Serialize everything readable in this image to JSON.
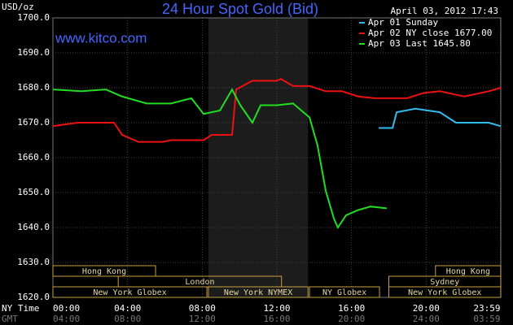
{
  "chart_data": {
    "type": "line",
    "title": "24 Hour Spot Gold (Bid)",
    "timestamp": "April 03, 2012 17:43",
    "y_label": "USD/oz",
    "watermark": "www.kitco.com",
    "x_row_label": "NY Time",
    "x2_row_label": "GMT",
    "ylim": [
      1620,
      1700
    ],
    "yticks": [
      {
        "value": 1620,
        "label": "1620.0"
      },
      {
        "value": 1630,
        "label": "1630.0"
      },
      {
        "value": 1640,
        "label": "1640.0"
      },
      {
        "value": 1650,
        "label": "1650.0"
      },
      {
        "value": 1660,
        "label": "1660.0"
      },
      {
        "value": 1670,
        "label": "1670.0"
      },
      {
        "value": 1680,
        "label": "1680.0"
      },
      {
        "value": 1690,
        "label": "1690.0"
      },
      {
        "value": 1700,
        "label": "1700.0"
      }
    ],
    "xlim": [
      0,
      24
    ],
    "xticks": [
      {
        "value": 0,
        "label": "00:00"
      },
      {
        "value": 4,
        "label": "04:00"
      },
      {
        "value": 8,
        "label": "08:00"
      },
      {
        "value": 12,
        "label": "12:00"
      },
      {
        "value": 16,
        "label": "16:00"
      },
      {
        "value": 20,
        "label": "20:00"
      },
      {
        "value": 23.98,
        "label": "23:59"
      }
    ],
    "gmt_labels": [
      "04:00",
      "08:00",
      "12:00",
      "16:00",
      "20:00",
      "24:00",
      "03:59"
    ],
    "grid": true,
    "series": [
      {
        "name": "Apr 01 Sunday",
        "color": "#33bbee",
        "x": [
          17.46,
          18.2,
          18.42,
          19.42,
          20.73,
          21.6,
          22.47,
          23.35,
          24
        ],
        "values": [
          1668.5,
          1668.5,
          1673,
          1674,
          1673,
          1670,
          1670,
          1670,
          1669
        ]
      },
      {
        "name": "Apr 02 NY close 1677.00",
        "color": "#ee1111",
        "x": [
          0,
          1.31,
          3.27,
          3.71,
          4.58,
          5.89,
          6.33,
          8.07,
          8.51,
          9.6,
          9.82,
          10.69,
          12,
          12.22,
          12.87,
          13.75,
          14.62,
          15.49,
          16.36,
          17.24,
          18.98,
          19.85,
          20.73,
          22.04,
          23.35,
          24
        ],
        "values": [
          1669,
          1670,
          1670,
          1666.5,
          1664.5,
          1664.5,
          1665,
          1665,
          1666.5,
          1666.5,
          1679.5,
          1682,
          1682,
          1682.5,
          1680.5,
          1680.5,
          1679,
          1679,
          1677.5,
          1677,
          1677,
          1678.5,
          1679,
          1677.5,
          1679,
          1680
        ]
      },
      {
        "name": "Apr 03 Last 1645.80",
        "color": "#22dd22",
        "x": [
          0,
          1.53,
          2.84,
          3.71,
          5.02,
          6.33,
          7.42,
          8.07,
          8.95,
          9.6,
          10.04,
          10.69,
          11.13,
          12,
          12.87,
          13.75,
          14.18,
          14.62,
          15.06,
          15.27,
          15.71,
          16.36,
          17.02,
          17.89
        ],
        "values": [
          1679.5,
          1679,
          1679.5,
          1677.5,
          1675.5,
          1675.5,
          1677,
          1672.5,
          1673.5,
          1679.5,
          1675,
          1670,
          1675,
          1675,
          1675.5,
          1671.5,
          1663.5,
          1650.5,
          1642.5,
          1640,
          1643.5,
          1645,
          1646,
          1645.5
        ]
      }
    ],
    "sessions": [
      [
        {
          "label": "Hong Kong",
          "start": 0,
          "end": 5.5
        },
        {
          "label": "Hong Kong",
          "start": 20.5,
          "end": 24
        }
      ],
      [
        {
          "label": "London",
          "start": 3.5,
          "end": 12.25
        },
        {
          "label": "Sydney",
          "start": 18,
          "end": 24
        }
      ],
      [
        {
          "label": "New York Globex",
          "start": 0,
          "end": 8.25
        },
        {
          "label": "New York NYMEX",
          "start": 8.33,
          "end": 13.67
        },
        {
          "label": "NY Globex",
          "start": 13.75,
          "end": 17.5
        },
        {
          "label": "New York Globex",
          "start": 18,
          "end": 24
        }
      ]
    ],
    "shaded_session": "chart_data.sessions.2.1"
  }
}
